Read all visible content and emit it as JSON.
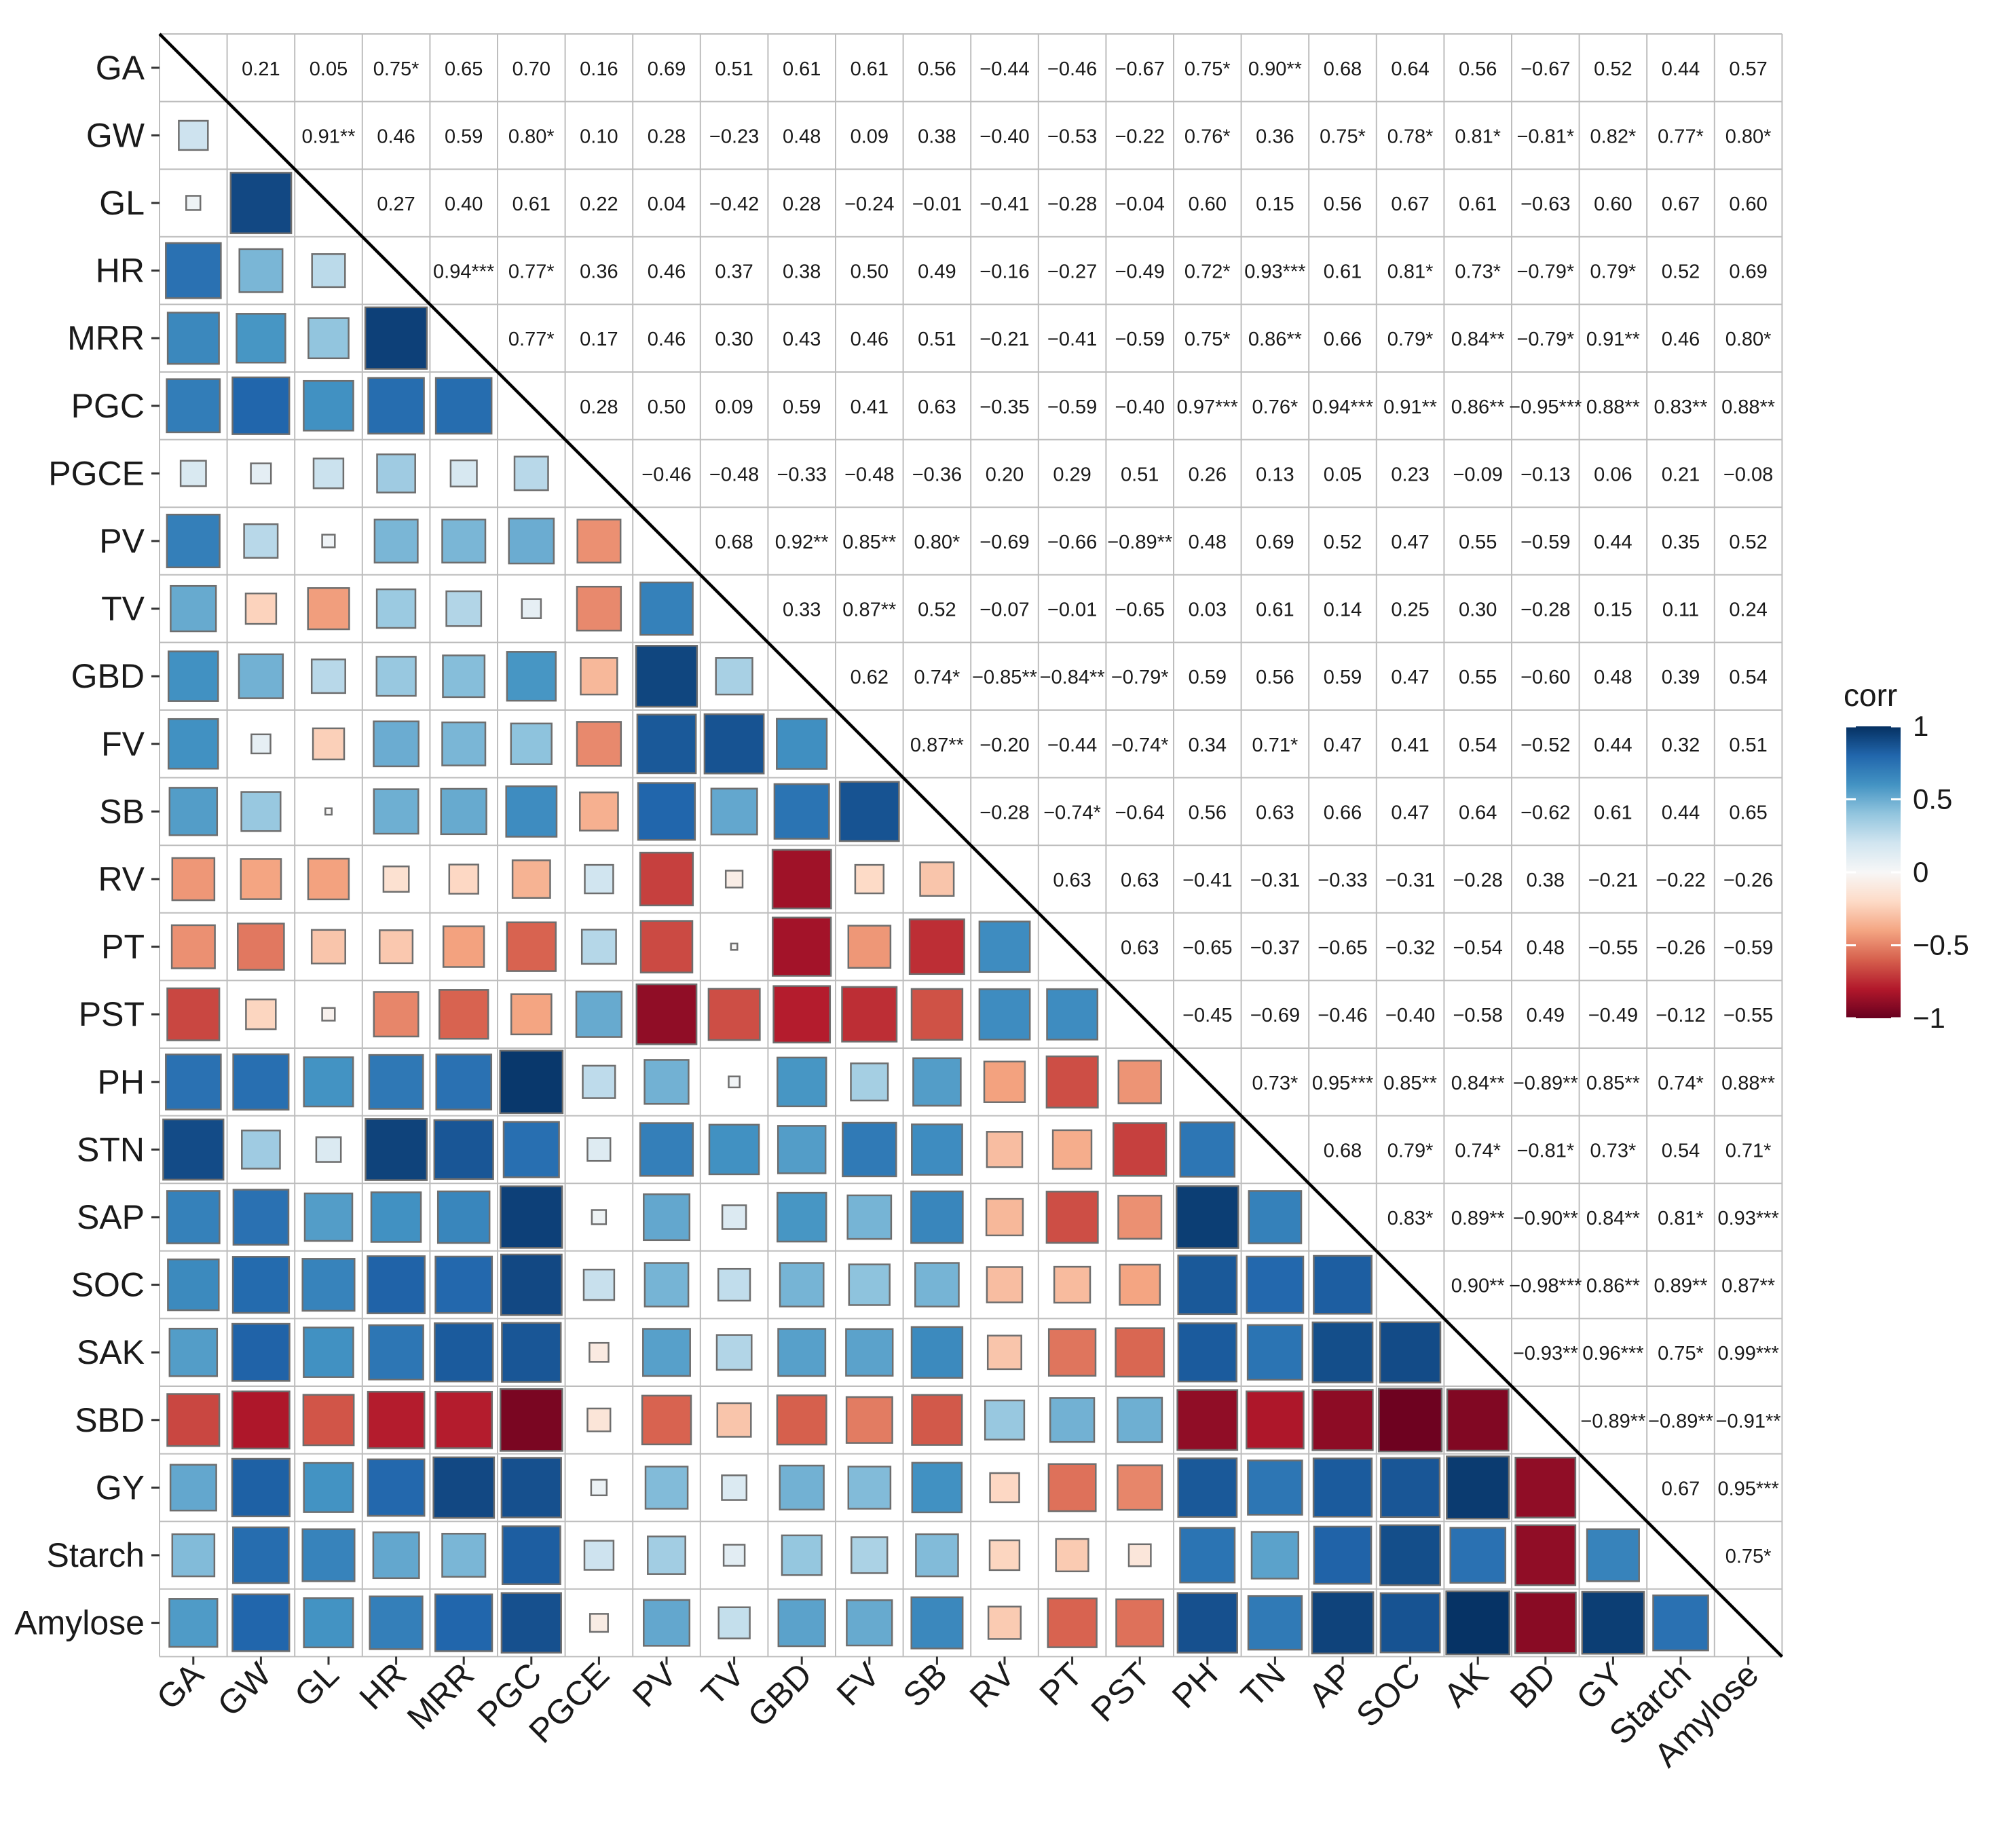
{
  "chart_data": {
    "type": "heatmap",
    "variables": [
      "GA",
      "GW",
      "GL",
      "HR",
      "MRR",
      "PGC",
      "PGCE",
      "PV",
      "TV",
      "GBD",
      "FV",
      "SB",
      "RV",
      "PT",
      "PST",
      "PH",
      "STN",
      "SAP",
      "SOC",
      "SAK",
      "SBD",
      "GY",
      "Starch",
      "Amylose"
    ],
    "x_labels": [
      "GA",
      "GW",
      "GL",
      "HR",
      "MRR",
      "PGC",
      "PGCE",
      "PV",
      "TV",
      "GBD",
      "FV",
      "SB",
      "RV",
      "PT",
      "PST",
      "PH",
      "TN",
      "AP",
      "SOC",
      "AK",
      "BD",
      "GY",
      "Starch",
      "Amylose"
    ],
    "upper_labels": [
      [
        "",
        "0.21",
        "0.05",
        "0.75*",
        "0.65",
        "0.70",
        "0.16",
        "0.69",
        "0.51",
        "0.61",
        "0.61",
        "0.56",
        "-0.44",
        "-0.46",
        "-0.67",
        "0.75*",
        "0.90**",
        "0.68",
        "0.64",
        "0.56",
        "-0.67",
        "0.52",
        "0.44",
        "0.57"
      ],
      [
        "",
        "",
        "0.91**",
        "0.46",
        "0.59",
        "0.80*",
        "0.10",
        "0.28",
        "-0.23",
        "0.48",
        "0.09",
        "0.38",
        "-0.40",
        "-0.53",
        "-0.22",
        "0.76*",
        "0.36",
        "0.75*",
        "0.78*",
        "0.81*",
        "-0.81*",
        "0.82*",
        "0.77*",
        "0.80*"
      ],
      [
        "",
        "",
        "",
        "0.27",
        "0.40",
        "0.61",
        "0.22",
        "0.04",
        "-0.42",
        "0.28",
        "-0.24",
        "-0.01",
        "-0.41",
        "-0.28",
        "-0.04",
        "0.60",
        "0.15",
        "0.56",
        "0.67",
        "0.61",
        "-0.63",
        "0.60",
        "0.67",
        "0.60"
      ],
      [
        "",
        "",
        "",
        "",
        "0.94***",
        "0.77*",
        "0.36",
        "0.46",
        "0.37",
        "0.38",
        "0.50",
        "0.49",
        "-0.16",
        "-0.27",
        "-0.49",
        "0.72*",
        "0.93***",
        "0.61",
        "0.81*",
        "0.73*",
        "-0.79*",
        "0.79*",
        "0.52",
        "0.69"
      ],
      [
        "",
        "",
        "",
        "",
        "",
        "0.77*",
        "0.17",
        "0.46",
        "0.30",
        "0.43",
        "0.46",
        "0.51",
        "-0.21",
        "-0.41",
        "-0.59",
        "0.75*",
        "0.86**",
        "0.66",
        "0.79*",
        "0.84**",
        "-0.79*",
        "0.91**",
        "0.46",
        "0.80*"
      ],
      [
        "",
        "",
        "",
        "",
        "",
        "",
        "0.28",
        "0.50",
        "0.09",
        "0.59",
        "0.41",
        "0.63",
        "-0.35",
        "-0.59",
        "-0.40",
        "0.97***",
        "0.76*",
        "0.94***",
        "0.91**",
        "0.86**",
        "-0.95***",
        "0.88**",
        "0.83**",
        "0.88**"
      ],
      [
        "",
        "",
        "",
        "",
        "",
        "",
        "",
        "-0.46",
        "-0.48",
        "-0.33",
        "-0.48",
        "-0.36",
        "0.20",
        "0.29",
        "0.51",
        "0.26",
        "0.13",
        "0.05",
        "0.23",
        "-0.09",
        "-0.13",
        "0.06",
        "0.21",
        "-0.08"
      ],
      [
        "",
        "",
        "",
        "",
        "",
        "",
        "",
        "",
        "0.68",
        "0.92**",
        "0.85**",
        "0.80*",
        "-0.69",
        "-0.66",
        "-0.89**",
        "0.48",
        "0.69",
        "0.52",
        "0.47",
        "0.55",
        "-0.59",
        "0.44",
        "0.35",
        "0.52"
      ],
      [
        "",
        "",
        "",
        "",
        "",
        "",
        "",
        "",
        "",
        "0.33",
        "0.87**",
        "0.52",
        "-0.07",
        "-0.01",
        "-0.65",
        "0.03",
        "0.61",
        "0.14",
        "0.25",
        "0.30",
        "-0.28",
        "0.15",
        "0.11",
        "0.24"
      ],
      [
        "",
        "",
        "",
        "",
        "",
        "",
        "",
        "",
        "",
        "",
        "0.62",
        "0.74*",
        "-0.85**",
        "-0.84**",
        "-0.79*",
        "0.59",
        "0.56",
        "0.59",
        "0.47",
        "0.55",
        "-0.60",
        "0.48",
        "0.39",
        "0.54"
      ],
      [
        "",
        "",
        "",
        "",
        "",
        "",
        "",
        "",
        "",
        "",
        "",
        "0.87**",
        "-0.20",
        "-0.44",
        "-0.74*",
        "0.34",
        "0.71*",
        "0.47",
        "0.41",
        "0.54",
        "-0.52",
        "0.44",
        "0.32",
        "0.51"
      ],
      [
        "",
        "",
        "",
        "",
        "",
        "",
        "",
        "",
        "",
        "",
        "",
        "",
        "-0.28",
        "-0.74*",
        "-0.64",
        "0.56",
        "0.63",
        "0.66",
        "0.47",
        "0.64",
        "-0.62",
        "0.61",
        "0.44",
        "0.65"
      ],
      [
        "",
        "",
        "",
        "",
        "",
        "",
        "",
        "",
        "",
        "",
        "",
        "",
        "",
        "0.63",
        "0.63",
        "-0.41",
        "-0.31",
        "-0.33",
        "-0.31",
        "-0.28",
        "0.38",
        "-0.21",
        "-0.22",
        "-0.26"
      ],
      [
        "",
        "",
        "",
        "",
        "",
        "",
        "",
        "",
        "",
        "",
        "",
        "",
        "",
        "",
        "0.63",
        "-0.65",
        "-0.37",
        "-0.65",
        "-0.32",
        "-0.54",
        "0.48",
        "-0.55",
        "-0.26",
        "-0.59"
      ],
      [
        "",
        "",
        "",
        "",
        "",
        "",
        "",
        "",
        "",
        "",
        "",
        "",
        "",
        "",
        "",
        "-0.45",
        "-0.69",
        "-0.46",
        "-0.40",
        "-0.58",
        "0.49",
        "-0.49",
        "-0.12",
        "-0.55"
      ],
      [
        "",
        "",
        "",
        "",
        "",
        "",
        "",
        "",
        "",
        "",
        "",
        "",
        "",
        "",
        "",
        "",
        "0.73*",
        "0.95***",
        "0.85**",
        "0.84**",
        "-0.89**",
        "0.85**",
        "0.74*",
        "0.88**"
      ],
      [
        "",
        "",
        "",
        "",
        "",
        "",
        "",
        "",
        "",
        "",
        "",
        "",
        "",
        "",
        "",
        "",
        "",
        "0.68",
        "0.79*",
        "0.74*",
        "-0.81*",
        "0.73*",
        "0.54",
        "0.71*"
      ],
      [
        "",
        "",
        "",
        "",
        "",
        "",
        "",
        "",
        "",
        "",
        "",
        "",
        "",
        "",
        "",
        "",
        "",
        "",
        "0.83*",
        "0.89**",
        "-0.90**",
        "0.84**",
        "0.81*",
        "0.93***"
      ],
      [
        "",
        "",
        "",
        "",
        "",
        "",
        "",
        "",
        "",
        "",
        "",
        "",
        "",
        "",
        "",
        "",
        "",
        "",
        "",
        "0.90**",
        "-0.98***",
        "0.86**",
        "0.89**",
        "0.87**"
      ],
      [
        "",
        "",
        "",
        "",
        "",
        "",
        "",
        "",
        "",
        "",
        "",
        "",
        "",
        "",
        "",
        "",
        "",
        "",
        "",
        "",
        "-0.93**",
        "0.96***",
        "0.75*",
        "0.99***"
      ],
      [
        "",
        "",
        "",
        "",
        "",
        "",
        "",
        "",
        "",
        "",
        "",
        "",
        "",
        "",
        "",
        "",
        "",
        "",
        "",
        "",
        "",
        "-0.89**",
        "-0.89**",
        "-0.91**"
      ],
      [
        "",
        "",
        "",
        "",
        "",
        "",
        "",
        "",
        "",
        "",
        "",
        "",
        "",
        "",
        "",
        "",
        "",
        "",
        "",
        "",
        "",
        "",
        "0.67",
        "0.95***"
      ],
      [
        "",
        "",
        "",
        "",
        "",
        "",
        "",
        "",
        "",
        "",
        "",
        "",
        "",
        "",
        "",
        "",
        "",
        "",
        "",
        "",
        "",
        "",
        "",
        "0.75*"
      ],
      [
        "",
        "",
        "",
        "",
        "",
        "",
        "",
        "",
        "",
        "",
        "",
        "",
        "",
        "",
        "",
        "",
        "",
        "",
        "",
        "",
        "",
        "",
        "",
        ""
      ]
    ],
    "legend": {
      "title": "corr",
      "ticks": [
        1,
        0.5,
        0,
        -0.5,
        -1
      ],
      "tick_labels": [
        "1",
        "0.5",
        "0",
        "−0.5",
        "−1"
      ],
      "colors": [
        "#053061",
        "#2166ac",
        "#4393c3",
        "#92c5de",
        "#d1e5f0",
        "#f7f7f7",
        "#fddbc7",
        "#f4a582",
        "#d6604d",
        "#b2182b",
        "#67001f"
      ],
      "placement": "right"
    },
    "grid": true,
    "diagonal_line": true
  }
}
